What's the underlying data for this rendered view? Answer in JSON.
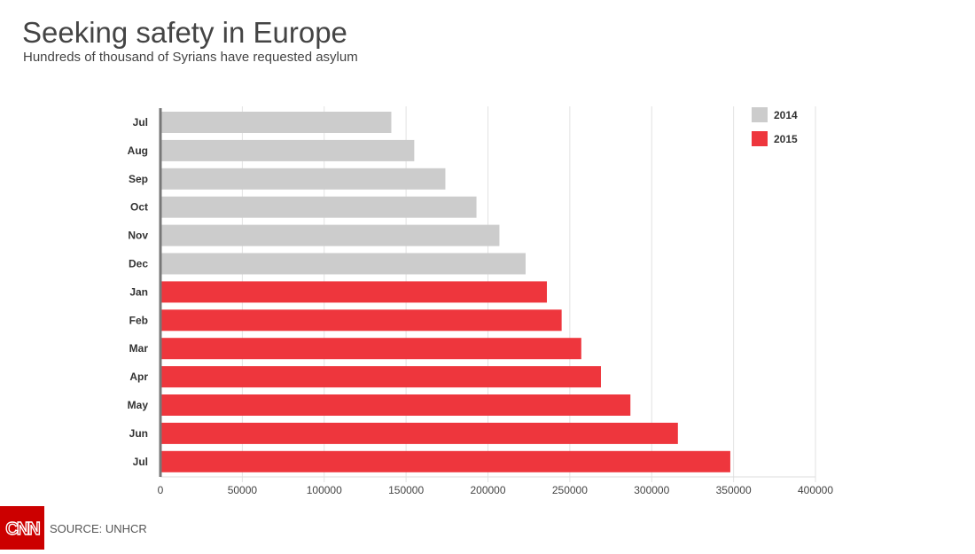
{
  "title": "Seeking safety in Europe",
  "subtitle": "Hundreds of thousand of Syrians have requested asylum",
  "source": "SOURCE: UNHCR",
  "logo_text": "CNN",
  "chart_data": {
    "type": "bar",
    "orientation": "horizontal",
    "categories": [
      "Jul",
      "Aug",
      "Sep",
      "Oct",
      "Nov",
      "Dec",
      "Jan",
      "Feb",
      "Mar",
      "Apr",
      "May",
      "Jun",
      "Jul"
    ],
    "values": [
      141000,
      155000,
      174000,
      193000,
      207000,
      223000,
      236000,
      245000,
      257000,
      269000,
      287000,
      316000,
      348000
    ],
    "series_of_bar": [
      "2014",
      "2014",
      "2014",
      "2014",
      "2014",
      "2014",
      "2015",
      "2015",
      "2015",
      "2015",
      "2015",
      "2015",
      "2015"
    ],
    "legend": [
      {
        "name": "2014",
        "color": "#cccccc"
      },
      {
        "name": "2015",
        "color": "#ee363d"
      }
    ],
    "legend_position": "top-right",
    "xlim": [
      0,
      400000
    ],
    "xticks": [
      "0",
      "50000",
      "100000",
      "150000",
      "200000",
      "250000",
      "300000",
      "350000",
      "400000"
    ],
    "grid": true
  }
}
